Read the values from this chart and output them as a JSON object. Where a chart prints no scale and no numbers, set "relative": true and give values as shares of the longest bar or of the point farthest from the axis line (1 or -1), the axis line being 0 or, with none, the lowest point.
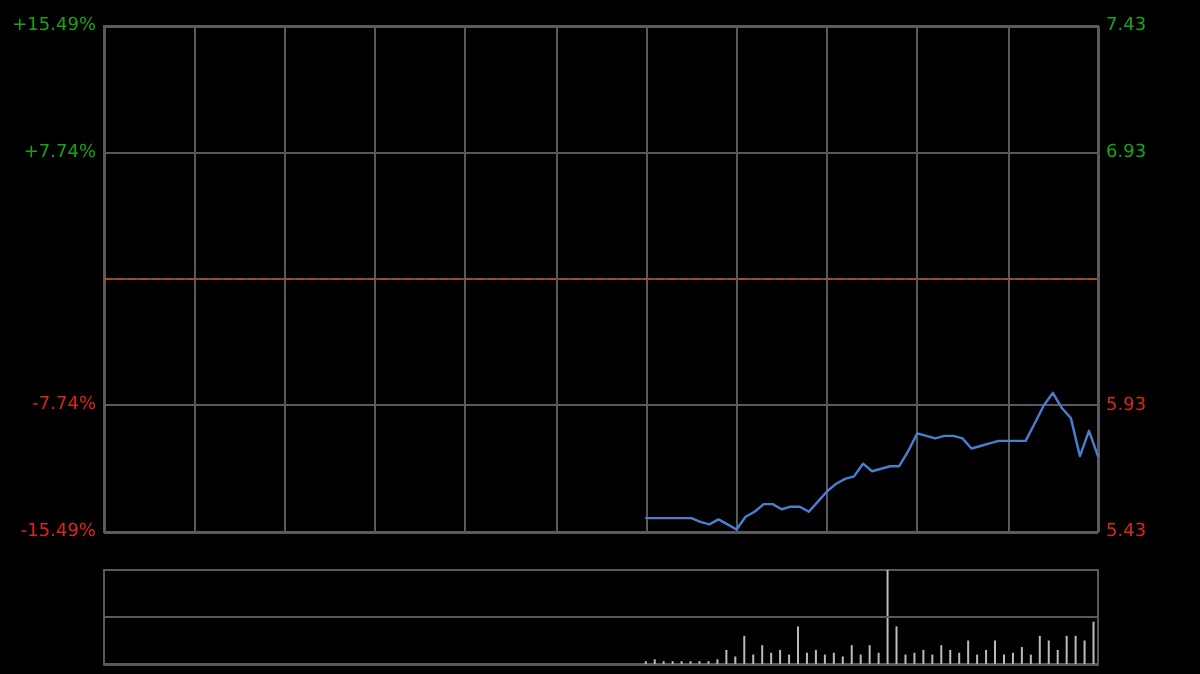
{
  "chart_data": [
    {
      "type": "line",
      "categories": [
        null,
        null,
        null,
        null,
        null,
        null,
        null,
        null,
        null,
        null,
        null,
        null,
        null,
        null,
        null,
        null,
        null,
        null,
        null,
        null,
        null,
        null,
        null,
        null,
        null,
        null,
        null,
        null,
        null,
        null,
        null,
        null,
        null,
        null,
        null,
        null,
        null,
        null,
        null,
        null,
        null,
        null,
        null,
        null,
        null,
        null,
        null,
        null,
        null,
        null,
        null,
        null,
        null,
        null,
        null,
        null,
        null,
        null,
        null,
        null,
        null,
        null,
        null,
        null,
        null,
        null,
        null,
        null,
        null,
        null,
        null,
        null,
        null,
        null,
        null,
        null,
        null,
        null,
        null,
        null,
        null,
        null,
        null,
        null,
        null,
        null,
        null,
        null,
        null,
        null,
        null,
        null,
        null,
        null,
        null,
        null,
        null,
        null,
        null,
        null,
        null,
        null,
        null,
        null,
        null,
        null,
        null,
        null,
        null,
        null,
        null
      ],
      "series": [
        {
          "color": "#4a7fd0",
          "axis": "y2",
          "values": [
            null,
            null,
            null,
            null,
            null,
            null,
            null,
            null,
            null,
            null,
            null,
            null,
            null,
            null,
            null,
            null,
            null,
            null,
            null,
            null,
            null,
            null,
            null,
            null,
            null,
            null,
            null,
            null,
            null,
            null,
            null,
            null,
            null,
            null,
            null,
            null,
            null,
            null,
            null,
            null,
            null,
            null,
            null,
            null,
            null,
            null,
            null,
            null,
            null,
            null,
            null,
            null,
            null,
            null,
            null,
            null,
            null,
            null,
            null,
            null,
            5.485,
            5.485,
            5.485,
            5.485,
            5.485,
            5.485,
            5.47,
            5.46,
            5.48,
            5.46,
            5.44,
            5.49,
            5.51,
            5.54,
            5.54,
            5.52,
            5.53,
            5.53,
            5.51,
            5.55,
            5.59,
            5.62,
            5.64,
            5.65,
            5.7,
            5.67,
            5.68,
            5.69,
            5.69,
            5.75,
            5.82,
            5.81,
            5.8,
            5.81,
            5.81,
            5.8,
            5.76,
            5.77,
            5.78,
            5.79,
            5.79,
            5.79,
            5.79,
            5.86,
            5.93,
            5.98,
            5.92,
            5.88,
            5.73,
            5.83,
            5.73
          ]
        }
      ],
      "ylim": [
        -15.49,
        15.49
      ],
      "yticks": [
        {
          "value": 15.49,
          "label": "+15.49%"
        },
        {
          "value": 7.74,
          "label": "+7.74%"
        },
        {
          "value": -7.74,
          "label": "-7.74%"
        },
        {
          "value": -15.49,
          "label": "-15.49%"
        }
      ],
      "y2lim": [
        5.43,
        7.43
      ],
      "y2ticks": [
        7.43,
        6.93,
        5.93,
        5.43
      ],
      "ref_lines": [
        {
          "axis": "y2",
          "value": 6.43,
          "color": "#b5462a",
          "line_style": "dashed"
        }
      ],
      "grid": true,
      "tick_labels": "y",
      "line_style": "solid"
    },
    {
      "type": "bar",
      "relative": true,
      "tick_labels": false,
      "ref_lines": [
        {
          "axis": "y",
          "value": 0.5,
          "color": "#5a5a5a"
        }
      ],
      "categories": [
        null,
        null,
        null,
        null,
        null,
        null,
        null,
        null,
        null,
        null,
        null,
        null,
        null,
        null,
        null,
        null,
        null,
        null,
        null,
        null,
        null,
        null,
        null,
        null,
        null,
        null,
        null,
        null,
        null,
        null,
        null,
        null,
        null,
        null,
        null,
        null,
        null,
        null,
        null,
        null,
        null,
        null,
        null,
        null,
        null,
        null,
        null,
        null,
        null,
        null,
        null,
        null,
        null,
        null,
        null,
        null,
        null,
        null,
        null,
        null,
        null,
        null,
        null,
        null,
        null,
        null,
        null,
        null,
        null,
        null,
        null,
        null,
        null,
        null,
        null,
        null,
        null,
        null,
        null,
        null,
        null,
        null,
        null,
        null,
        null,
        null,
        null,
        null,
        null,
        null,
        null,
        null,
        null,
        null,
        null,
        null,
        null,
        null,
        null,
        null,
        null,
        null,
        null,
        null,
        null,
        null,
        null,
        null,
        null,
        null,
        null
      ],
      "color": "#bbbbbb",
      "values": [
        null,
        null,
        null,
        null,
        null,
        null,
        null,
        null,
        null,
        null,
        null,
        null,
        null,
        null,
        null,
        null,
        null,
        null,
        null,
        null,
        null,
        null,
        null,
        null,
        null,
        null,
        null,
        null,
        null,
        null,
        null,
        null,
        null,
        null,
        null,
        null,
        null,
        null,
        null,
        null,
        null,
        null,
        null,
        null,
        null,
        null,
        null,
        null,
        null,
        null,
        null,
        null,
        null,
        null,
        null,
        null,
        null,
        null,
        null,
        null,
        0.03,
        0.05,
        0.03,
        0.03,
        0.03,
        0.03,
        0.03,
        0.03,
        0.05,
        0.15,
        0.08,
        0.3,
        0.1,
        0.2,
        0.12,
        0.15,
        0.1,
        0.4,
        0.12,
        0.15,
        0.1,
        0.12,
        0.08,
        0.2,
        0.1,
        0.2,
        0.12,
        1,
        0.4,
        0.1,
        0.12,
        0.15,
        0.1,
        0.2,
        0.15,
        0.12,
        0.25,
        0.1,
        0.15,
        0.25,
        0.1,
        0.12,
        0.18,
        0.1,
        0.3,
        0.25,
        0.15,
        0.3,
        0.3,
        0.25,
        0.45
      ]
    }
  ]
}
